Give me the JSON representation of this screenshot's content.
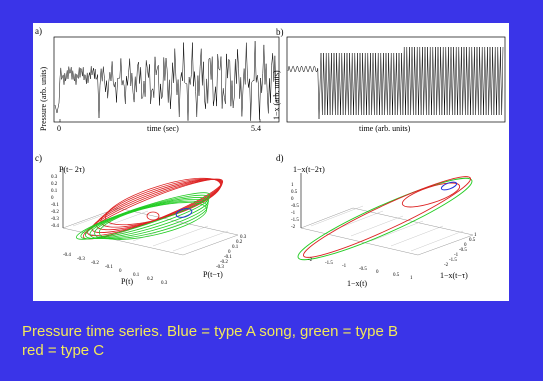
{
  "panel_a": {
    "letter": "a)",
    "ylabel": "Pressure (arb. units)",
    "xlabel": "time (sec)",
    "tick_start": "0",
    "tick_end": "5.4"
  },
  "panel_b": {
    "letter": "b)",
    "ylabel": "1−x (arb. units)",
    "xlabel": "time (arb. units)"
  },
  "panel_c": {
    "letter": "c)",
    "zlabel": "P(t− 2τ)",
    "xlabel": "P(t)",
    "ylabel": "P(t−τ)",
    "z_ticks": [
      "0.3",
      "0.2",
      "0.1",
      "0",
      "-0.1",
      "-0.2",
      "-0.3",
      "-0.4"
    ],
    "x_ticks": [
      "-0.4",
      "-0.3",
      "-0.2",
      "-0.1",
      "0",
      "0.1",
      "0.2",
      "0.3"
    ],
    "y_ticks": [
      "0.3",
      "0.2",
      "0.1",
      "0",
      "-0.1",
      "-0.2",
      "-0.3"
    ]
  },
  "panel_d": {
    "letter": "d)",
    "zlabel": "1−x(t−2τ)",
    "xlabel": "1−x(t)",
    "ylabel": "1−x(t−τ)",
    "z_ticks": [
      "1",
      "0.5",
      "0",
      "-0.5",
      "-1",
      "-1.5",
      "-2"
    ],
    "x_ticks": [
      "-2",
      "-1.5",
      "-1",
      "-0.5",
      "0",
      "0.5",
      "1"
    ],
    "y_ticks": [
      "1",
      "0.5",
      "0",
      "-0.5",
      "-1",
      "-1.5",
      "-2"
    ]
  },
  "colors": {
    "type_a": "#2233dd",
    "type_b": "#22cc22",
    "type_c": "#dd2222"
  },
  "caption": {
    "line1": "Pressure time series. Blue = type A song, green = type B",
    "line2": "red = type C"
  }
}
